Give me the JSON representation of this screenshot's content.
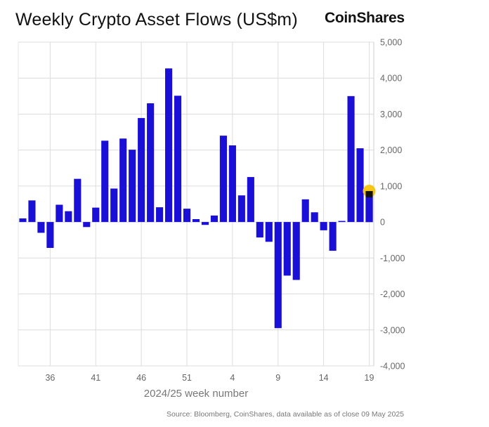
{
  "header": {
    "title": "Weekly Crypto Asset Flows (US$m)",
    "brand": "CoinShares"
  },
  "footer": {
    "source": "Source: Bloomberg, CoinShares, data available as of close 09 May 2025"
  },
  "chart_data": {
    "type": "bar",
    "title": "Weekly Crypto Asset Flows (US$m)",
    "xlabel": "2024/25 week number",
    "ylabel": "",
    "ylim": [
      -4000,
      5000
    ],
    "yticks": [
      5000,
      4000,
      3000,
      2000,
      1000,
      0,
      -1000,
      -2000,
      -3000,
      -4000
    ],
    "ytick_labels": [
      "5,000",
      "4,000",
      "3,000",
      "2,000",
      "1,000",
      "0",
      "-1,000",
      "-2,000",
      "-3,000",
      "-4,000"
    ],
    "y_axis_position": "right",
    "xtick_labels": [
      "36",
      "41",
      "46",
      "51",
      "4",
      "9",
      "14",
      "19"
    ],
    "xtick_weeks": [
      36,
      41,
      46,
      51,
      4,
      9,
      14,
      19
    ],
    "grid": true,
    "legend": "none",
    "bar_color": "#1a0fd6",
    "highlight_color": "#f5c518",
    "highlight_week": 19,
    "weeks": [
      33,
      34,
      35,
      36,
      37,
      38,
      39,
      40,
      41,
      42,
      43,
      44,
      45,
      46,
      47,
      48,
      49,
      50,
      51,
      52,
      1,
      2,
      3,
      4,
      5,
      6,
      7,
      8,
      9,
      10,
      11,
      12,
      13,
      14,
      15,
      16,
      17,
      18,
      19
    ],
    "values": [
      100,
      600,
      -300,
      -720,
      480,
      300,
      1200,
      -140,
      400,
      2260,
      930,
      2320,
      2010,
      2890,
      3300,
      410,
      4270,
      3510,
      370,
      80,
      -80,
      180,
      2400,
      2130,
      740,
      1250,
      -430,
      -550,
      -2950,
      -1490,
      -1610,
      630,
      270,
      -230,
      -800,
      30,
      3500,
      2050,
      860
    ]
  }
}
